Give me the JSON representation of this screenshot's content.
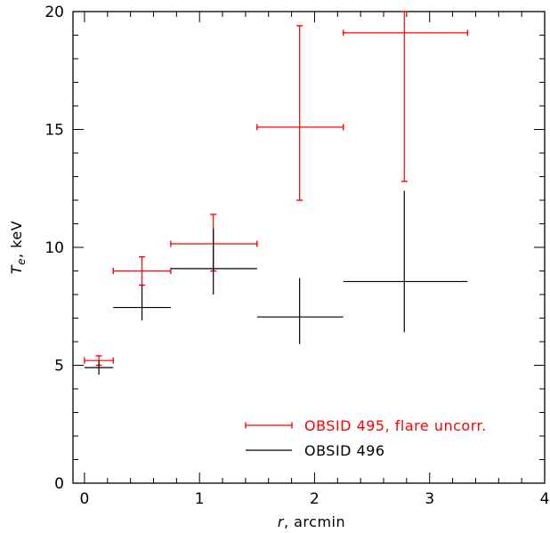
{
  "chart_data": {
    "type": "scatter",
    "title": "",
    "xlabel_var": "r",
    "xlabel_unit": ", arcmin",
    "ylabel_var": "T",
    "ylabel_sub": "e",
    "ylabel_unit": ", keV",
    "xlim": [
      -0.1,
      4.0
    ],
    "ylim": [
      0,
      20
    ],
    "x_ticks": [
      0,
      1,
      2,
      3,
      4
    ],
    "y_ticks": [
      0,
      5,
      10,
      15,
      20
    ],
    "x_tick_labels": [
      "0",
      "1",
      "2",
      "3",
      "4"
    ],
    "y_tick_labels": [
      "0",
      "5",
      "10",
      "15",
      "20"
    ],
    "x_minor_step": 0.2,
    "y_minor_step": 1,
    "grid": false,
    "legend_position": "bottom-right",
    "series": [
      {
        "name": "OBSID 495, flare uncorr.",
        "color": "#ff0000",
        "capped": true,
        "points": [
          {
            "x": 0.125,
            "xlo": 0.0,
            "xhi": 0.25,
            "y": 5.2,
            "ylo": 5.0,
            "yhi": 5.4
          },
          {
            "x": 0.5,
            "xlo": 0.25,
            "xhi": 0.75,
            "y": 9.0,
            "ylo": 8.4,
            "yhi": 9.6
          },
          {
            "x": 1.12,
            "xlo": 0.75,
            "xhi": 1.5,
            "y": 10.15,
            "ylo": 9.0,
            "yhi": 11.4
          },
          {
            "x": 1.87,
            "xlo": 1.5,
            "xhi": 2.25,
            "y": 15.1,
            "ylo": 12.0,
            "yhi": 19.4
          },
          {
            "x": 2.78,
            "xlo": 2.25,
            "xhi": 3.33,
            "y": 19.1,
            "ylo": 12.8,
            "yhi": 20.0
          }
        ]
      },
      {
        "name": "OBSID 496",
        "color": "#000000",
        "capped": false,
        "points": [
          {
            "x": 0.125,
            "xlo": 0.0,
            "xhi": 0.25,
            "y": 4.9,
            "ylo": 4.6,
            "yhi": 5.2
          },
          {
            "x": 0.5,
            "xlo": 0.25,
            "xhi": 0.75,
            "y": 7.45,
            "ylo": 6.9,
            "yhi": 8.4
          },
          {
            "x": 1.12,
            "xlo": 0.75,
            "xhi": 1.5,
            "y": 9.1,
            "ylo": 8.0,
            "yhi": 10.8
          },
          {
            "x": 1.87,
            "xlo": 1.5,
            "xhi": 2.25,
            "y": 7.05,
            "ylo": 5.9,
            "yhi": 8.7
          },
          {
            "x": 2.78,
            "xlo": 2.25,
            "xhi": 3.33,
            "y": 8.55,
            "ylo": 6.4,
            "yhi": 12.4
          }
        ]
      }
    ]
  }
}
